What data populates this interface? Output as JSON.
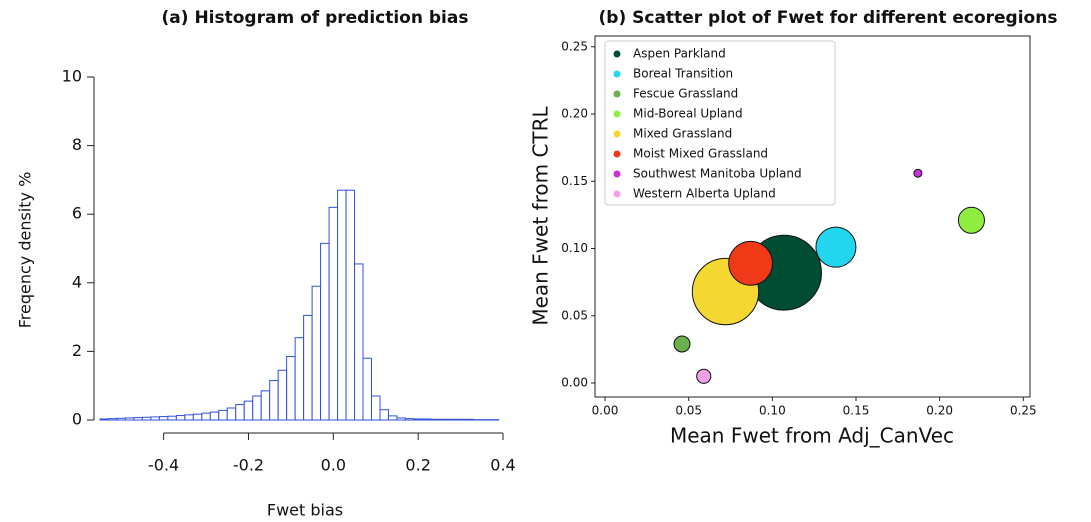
{
  "chart_data": [
    {
      "type": "histogram",
      "title": "(a) Histogram of prediction bias",
      "xlabel": "Fwet bias",
      "ylabel": "Freqency density %",
      "bins": [
        -0.55,
        -0.53,
        -0.51,
        -0.49,
        -0.47,
        -0.45,
        -0.43,
        -0.41,
        -0.39,
        -0.37,
        -0.35,
        -0.33,
        -0.31,
        -0.29,
        -0.27,
        -0.25,
        -0.23,
        -0.21,
        -0.19,
        -0.17,
        -0.15,
        -0.13,
        -0.11,
        -0.09,
        -0.07,
        -0.05,
        -0.03,
        -0.01,
        0.01,
        0.03,
        0.05,
        0.07,
        0.09,
        0.11,
        0.13,
        0.15,
        0.17,
        0.19,
        0.21,
        0.23,
        0.25,
        0.27,
        0.29,
        0.31,
        0.33,
        0.35,
        0.37,
        0.39
      ],
      "values": [
        0.03,
        0.04,
        0.05,
        0.06,
        0.07,
        0.08,
        0.09,
        0.1,
        0.11,
        0.13,
        0.15,
        0.17,
        0.2,
        0.23,
        0.28,
        0.35,
        0.45,
        0.55,
        0.7,
        0.85,
        1.15,
        1.45,
        1.85,
        2.4,
        3.05,
        3.9,
        5.15,
        6.2,
        6.7,
        6.7,
        4.55,
        1.8,
        0.7,
        0.3,
        0.12,
        0.06,
        0.04,
        0.03,
        0.03,
        0.02,
        0.02,
        0.02,
        0.02,
        0.02,
        0.01,
        0.01,
        0.01
      ],
      "color": "#3050e0",
      "xlim": [
        -0.55,
        0.4
      ],
      "xticks": [
        -0.4,
        -0.2,
        {
          "value": 0,
          "label": "0.0"
        },
        0.2,
        0.4
      ],
      "ylim": [
        0,
        10
      ],
      "yticks": [
        0,
        2,
        4,
        6,
        8,
        10
      ]
    },
    {
      "type": "scatter",
      "title": "(b) Scatter plot of Fwet for different ecoregions",
      "xlabel": "Mean Fwet from Adj_CanVec",
      "ylabel": "Mean Fwet from CTRL",
      "xlim": [
        -0.006,
        0.254
      ],
      "ylim": [
        -0.0104,
        0.258
      ],
      "xticks": [
        {
          "value": 0,
          "label": "0.00"
        },
        {
          "value": 0.05,
          "label": "0.05"
        },
        {
          "value": 0.1,
          "label": "0.10"
        },
        {
          "value": 0.15,
          "label": "0.15"
        },
        {
          "value": 0.2,
          "label": "0.20"
        },
        {
          "value": 0.25,
          "label": "0.25"
        }
      ],
      "yticks": [
        {
          "value": 0,
          "label": "0.00"
        },
        {
          "value": 0.05,
          "label": "0.05"
        },
        {
          "value": 0.1,
          "label": "0.10"
        },
        {
          "value": 0.15,
          "label": "0.15"
        },
        {
          "value": 0.2,
          "label": "0.20"
        },
        {
          "value": 0.25,
          "label": "0.25"
        }
      ],
      "legend": "upper left",
      "series": [
        {
          "name": "Aspen Parkland",
          "color": "#004d33",
          "x": [
            0.107
          ],
          "values": [
            0.082
          ],
          "sizes": [
            1400
          ]
        },
        {
          "name": "Boreal Transition",
          "color": "#22d6f0",
          "x": [
            0.138
          ],
          "values": [
            0.101
          ],
          "sizes": [
            400
          ]
        },
        {
          "name": "Fescue Grassland",
          "color": "#6ab04c",
          "x": [
            0.046
          ],
          "values": [
            0.029
          ],
          "sizes": [
            64
          ]
        },
        {
          "name": "Mid-Boreal Upland",
          "color": "#90ee40",
          "x": [
            0.219
          ],
          "values": [
            0.121
          ],
          "sizes": [
            170
          ]
        },
        {
          "name": "Mixed Grassland",
          "color": "#f5d731",
          "x": [
            0.072
          ],
          "values": [
            0.068
          ],
          "sizes": [
            1100
          ]
        },
        {
          "name": "Moist Mixed Grassland",
          "color": "#f03a17",
          "x": [
            0.087
          ],
          "values": [
            0.089
          ],
          "sizes": [
            480
          ]
        },
        {
          "name": "Southwest Manitoba Upland",
          "color": "#c832d8",
          "x": [
            0.187
          ],
          "values": [
            0.156
          ],
          "sizes": [
            16
          ]
        },
        {
          "name": "Western Alberta Upland",
          "color": "#f0a0e8",
          "x": [
            0.059
          ],
          "values": [
            0.005
          ],
          "sizes": [
            50
          ]
        }
      ]
    }
  ]
}
